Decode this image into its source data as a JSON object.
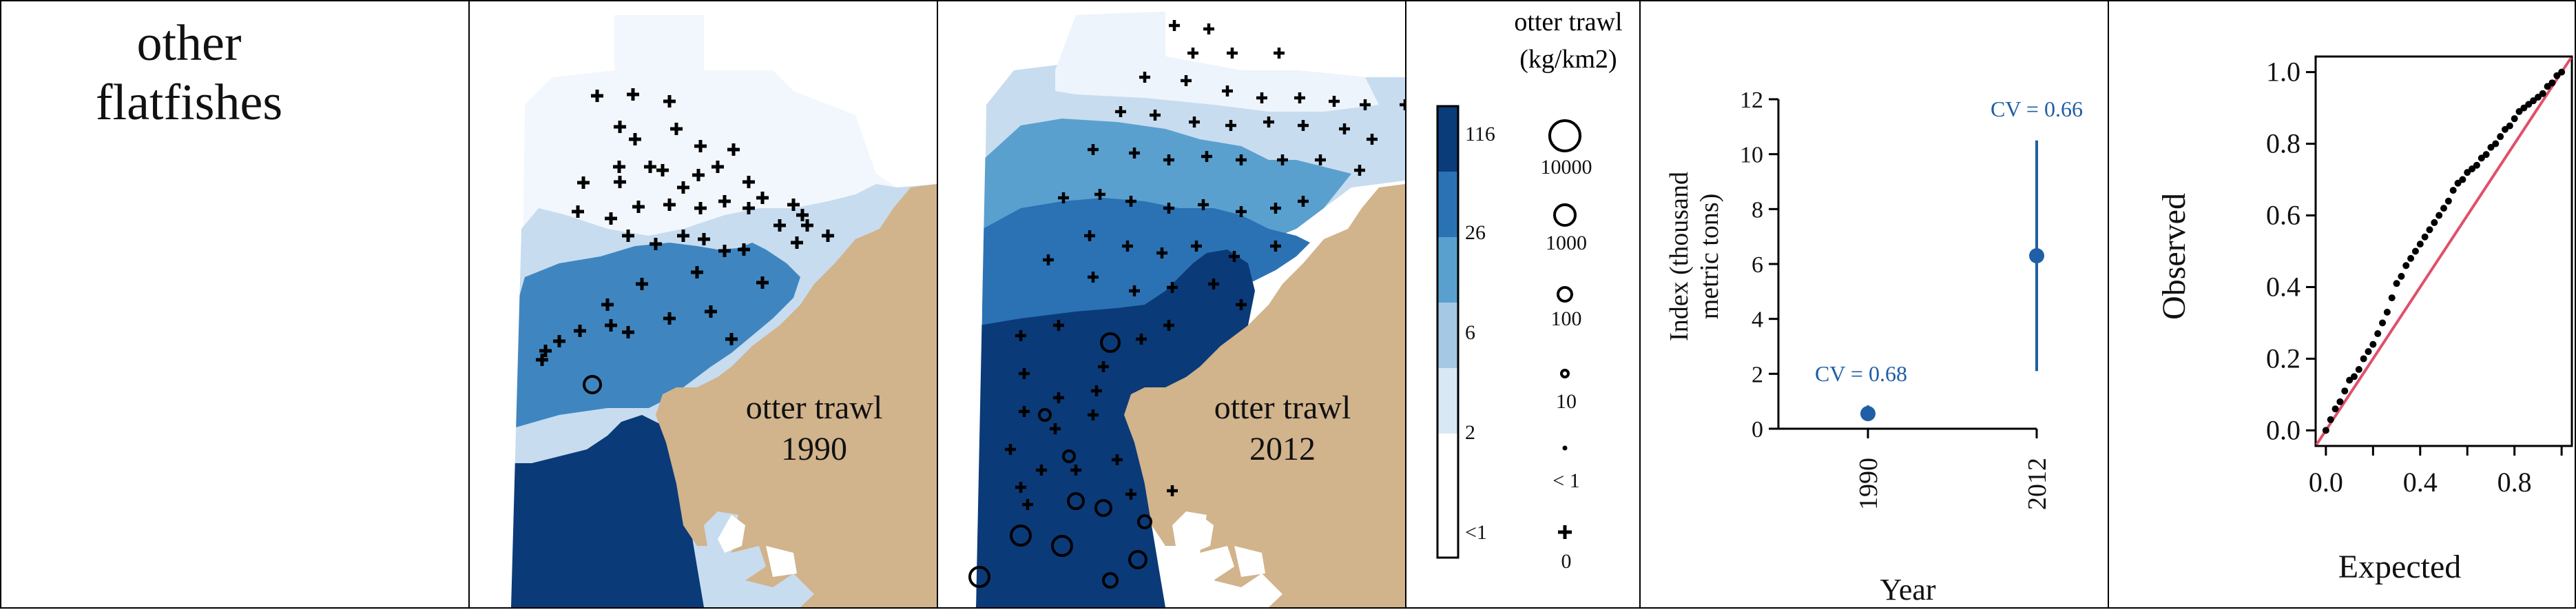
{
  "title_panel": {
    "line1": "other",
    "line2": "flatfishes"
  },
  "map_1990": {
    "survey": "otter trawl",
    "year": "1990"
  },
  "map_2012": {
    "survey": "otter trawl",
    "year": "2012"
  },
  "legend": {
    "title_line1": "otter trawl",
    "title_line2": "(kg/km2)",
    "color_breaks": [
      "116",
      "26",
      "6",
      "2",
      "<1"
    ],
    "colors": [
      "#0b3c7a",
      "#2a72b4",
      "#5aa0cf",
      "#a5c9e5",
      "#d8e8f5",
      "#ffffff"
    ],
    "size_labels": [
      "10000",
      "1000",
      "100",
      "10",
      "< 1",
      "0"
    ]
  },
  "colors": {
    "land": "#d1b38c",
    "ocean_light": "#f4f8fd",
    "accent": "#1f5fa6",
    "qq_line": "#e0506a"
  },
  "chart_data": [
    {
      "type": "scatter",
      "title": "",
      "xlabel": "Year",
      "ylabel_line1": "Index (thousand",
      "ylabel_line2": "metric tons)",
      "x_categories": [
        "1990",
        "2012"
      ],
      "y_ticks": [
        "0",
        "2",
        "4",
        "6",
        "8",
        "10",
        "12"
      ],
      "ylim": [
        0,
        12
      ],
      "points": [
        {
          "x": "1990",
          "y": 0.55,
          "lower": 0.3,
          "upper": 0.85,
          "cv_label": "CV = 0.68"
        },
        {
          "x": "2012",
          "y": 6.3,
          "lower": 2.1,
          "upper": 10.5,
          "cv_label": "CV = 0.66"
        }
      ],
      "color": "#1f5fa6"
    },
    {
      "type": "scatter",
      "title": "",
      "xlabel": "Expected",
      "ylabel": "Observed",
      "x_ticks": [
        "0.0",
        "0.4",
        "0.8"
      ],
      "y_ticks": [
        "0.0",
        "0.2",
        "0.4",
        "0.6",
        "0.8",
        "1.0"
      ],
      "xlim": [
        0,
        1
      ],
      "ylim": [
        0,
        1
      ],
      "reference_line": "y = x",
      "points_x": [
        0.0,
        0.02,
        0.04,
        0.06,
        0.08,
        0.1,
        0.12,
        0.14,
        0.16,
        0.18,
        0.2,
        0.22,
        0.24,
        0.26,
        0.28,
        0.3,
        0.32,
        0.34,
        0.36,
        0.38,
        0.4,
        0.42,
        0.44,
        0.46,
        0.48,
        0.5,
        0.52,
        0.54,
        0.56,
        0.58,
        0.6,
        0.62,
        0.64,
        0.66,
        0.68,
        0.7,
        0.72,
        0.74,
        0.76,
        0.78,
        0.8,
        0.82,
        0.84,
        0.86,
        0.88,
        0.9,
        0.92,
        0.94,
        0.96,
        0.98,
        1.0
      ],
      "points_y": [
        0.0,
        0.03,
        0.06,
        0.08,
        0.11,
        0.14,
        0.15,
        0.17,
        0.2,
        0.22,
        0.24,
        0.27,
        0.3,
        0.33,
        0.37,
        0.41,
        0.43,
        0.46,
        0.48,
        0.5,
        0.52,
        0.54,
        0.56,
        0.58,
        0.6,
        0.62,
        0.64,
        0.67,
        0.69,
        0.7,
        0.72,
        0.73,
        0.74,
        0.76,
        0.77,
        0.79,
        0.8,
        0.82,
        0.84,
        0.85,
        0.87,
        0.89,
        0.9,
        0.91,
        0.92,
        0.93,
        0.94,
        0.96,
        0.97,
        0.99,
        1.0
      ]
    }
  ]
}
